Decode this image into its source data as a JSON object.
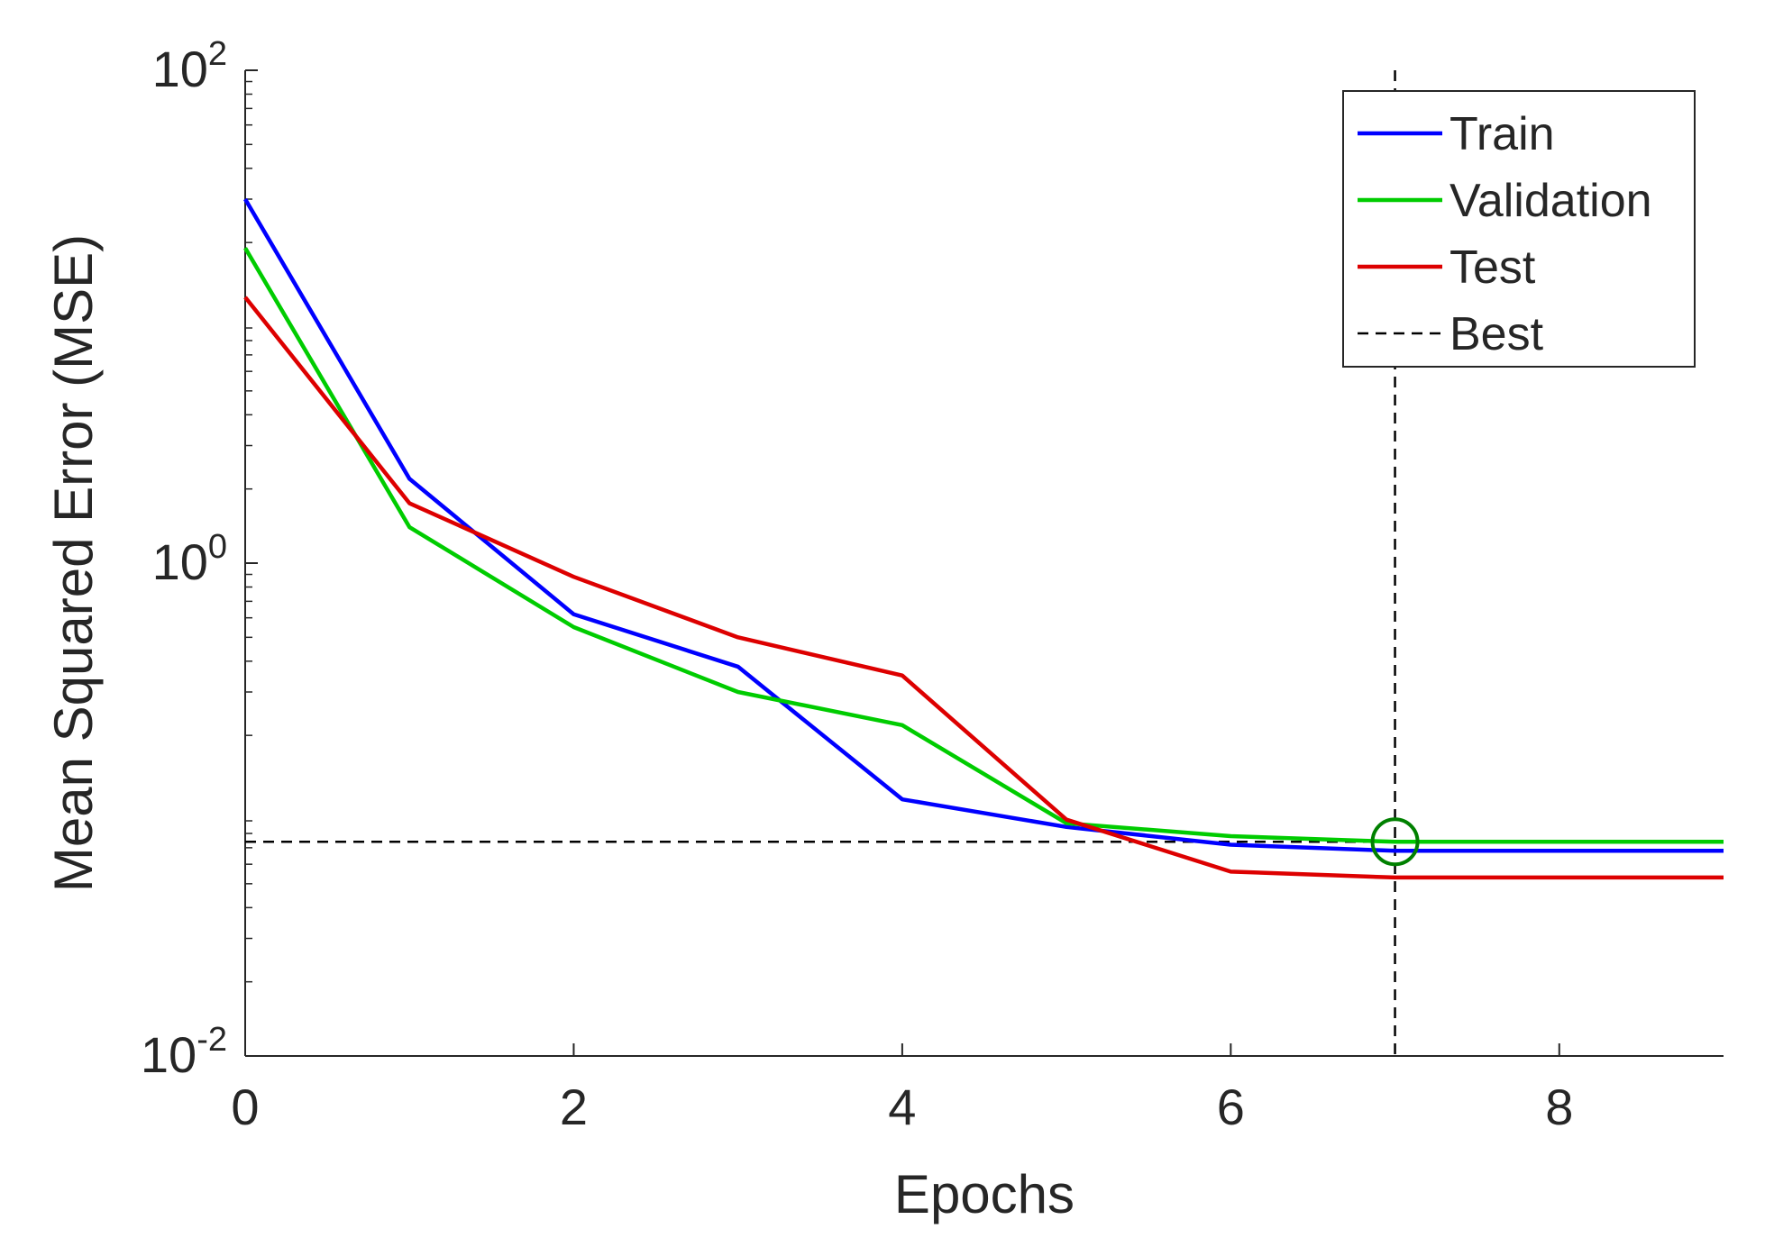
{
  "chart_data": {
    "type": "line",
    "xlabel": "Epochs",
    "ylabel": "Mean Squared Error (MSE)",
    "xlim": [
      0,
      9
    ],
    "ylim": [
      0.01,
      100
    ],
    "yscale": "log",
    "grid": false,
    "legend_position": "top-right",
    "x_ticks": [
      0,
      2,
      4,
      6,
      8
    ],
    "x_tick_labels": [
      "0",
      "2",
      "4",
      "6",
      "8"
    ],
    "y_ticks": [
      0.01,
      1,
      100
    ],
    "y_tick_labels": [
      {
        "base": "10",
        "exp": "-2"
      },
      {
        "base": "10",
        "exp": "0"
      },
      {
        "base": "10",
        "exp": "2"
      }
    ],
    "x": [
      0,
      1,
      2,
      3,
      4,
      5,
      6,
      7,
      8,
      9
    ],
    "series": [
      {
        "name": "Train",
        "color": "#0000ff",
        "values": [
          30,
          2.2,
          0.62,
          0.38,
          0.11,
          0.085,
          0.072,
          0.068,
          0.068,
          0.068
        ]
      },
      {
        "name": "Validation",
        "color": "#00cc00",
        "values": [
          19,
          1.4,
          0.55,
          0.3,
          0.22,
          0.088,
          0.078,
          0.074,
          0.074,
          0.074
        ]
      },
      {
        "name": "Test",
        "color": "#dd0000",
        "values": [
          12,
          1.75,
          0.88,
          0.5,
          0.35,
          0.091,
          0.056,
          0.053,
          0.053,
          0.053
        ]
      }
    ],
    "best": {
      "label": "Best",
      "epoch": 7,
      "value": 0.074,
      "marker_color": "#008000",
      "line_color": "#000000"
    }
  }
}
